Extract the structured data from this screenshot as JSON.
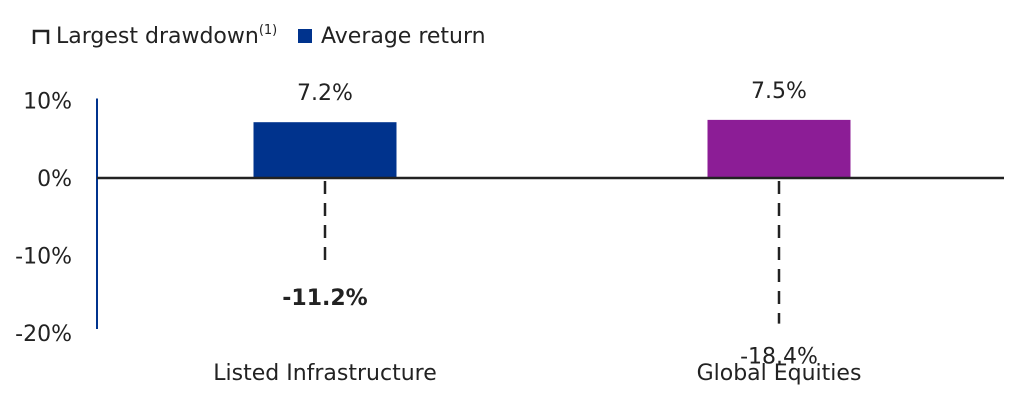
{
  "chart_data": {
    "type": "bar",
    "categories": [
      "Listed Infrastructure",
      "Global Equities"
    ],
    "series": [
      {
        "name": "Average return",
        "values": [
          7.2,
          7.5
        ],
        "labels": [
          "7.2%",
          "7.5%"
        ],
        "colors": [
          "#00338D",
          "#8C1D96"
        ]
      },
      {
        "name": "Largest drawdown",
        "name_sup": "(1)",
        "values": [
          -11.2,
          -18.4
        ],
        "labels": [
          "-11.2%",
          "-18.4%"
        ],
        "label_bold": [
          true,
          false
        ]
      }
    ],
    "yaxis": {
      "ticks": [
        "10%",
        "0%",
        "-10%",
        "-20%"
      ],
      "tick_values": [
        10,
        0,
        -10,
        -20
      ],
      "ylim": [
        -20,
        10
      ]
    },
    "legend": {
      "position": "top-left"
    },
    "colors": {
      "axis": "#00338D",
      "zero_line": "#222222",
      "drawdown": "#222222"
    }
  }
}
